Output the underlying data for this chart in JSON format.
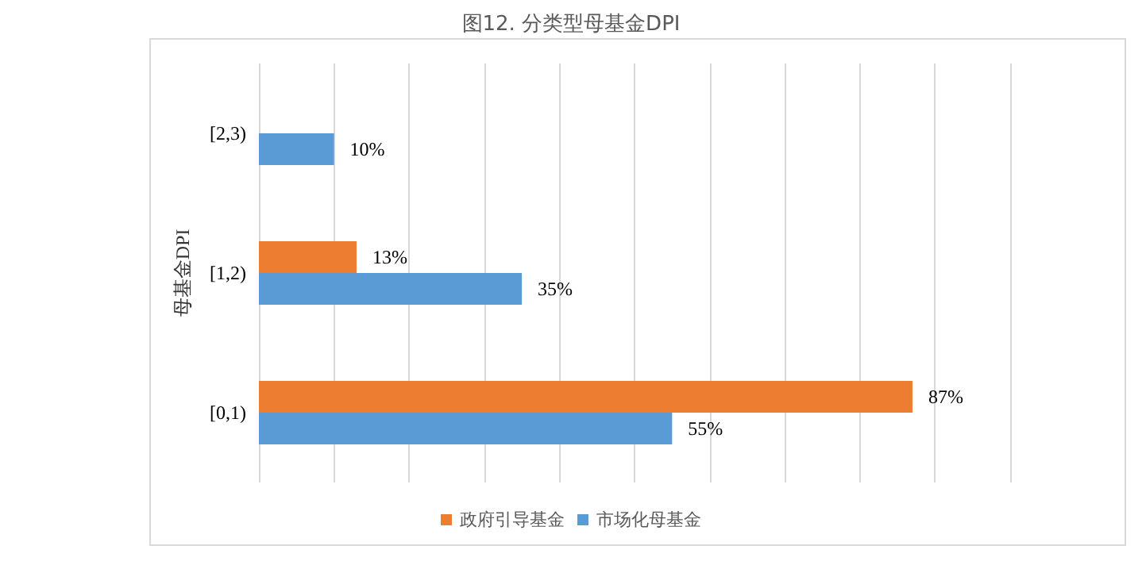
{
  "chart_data": {
    "type": "bar",
    "orientation": "horizontal",
    "title": "图12. 分类型母基金DPI",
    "ylabel": "母基金DPI",
    "categories": [
      "[2,3)",
      "[1,2)",
      "[0,1)"
    ],
    "series": [
      {
        "name": "政府引导基金",
        "color": "#ed7d31",
        "values": [
          null,
          13,
          87
        ],
        "value_labels": [
          null,
          "13%",
          "87%"
        ]
      },
      {
        "name": "市场化母基金",
        "color": "#5b9bd5",
        "values": [
          10,
          35,
          55
        ],
        "value_labels": [
          "10%",
          "35%",
          "55%"
        ]
      }
    ],
    "xlim": [
      0,
      100
    ],
    "xticks": [
      {
        "value": 0,
        "label": null
      },
      {
        "value": 10,
        "label": null
      },
      {
        "value": 20,
        "label": null
      },
      {
        "value": 30,
        "label": null
      },
      {
        "value": 40,
        "label": null
      },
      {
        "value": 50,
        "label": null
      },
      {
        "value": 60,
        "label": null
      },
      {
        "value": 70,
        "label": null
      },
      {
        "value": 80,
        "label": null
      },
      {
        "value": 90,
        "label": null
      },
      {
        "value": 100,
        "label": null
      }
    ],
    "grid": "x",
    "tick_labels": "y",
    "legend": "bottom"
  }
}
